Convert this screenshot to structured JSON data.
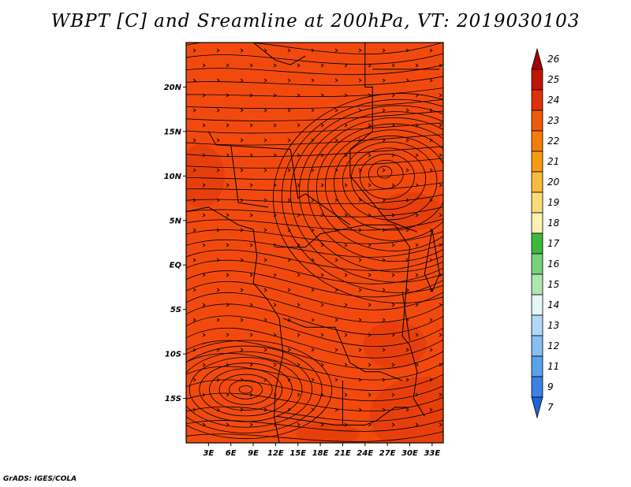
{
  "title": "WBPT [C] and Sreamline at 200hPa, VT: 2019030103",
  "credit": "GrADS: IGES/COLA",
  "map": {
    "lon_labels": [
      "3E",
      "6E",
      "9E",
      "12E",
      "15E",
      "18E",
      "21E",
      "24E",
      "27E",
      "30E",
      "33E"
    ],
    "lon_values": [
      3,
      6,
      9,
      12,
      15,
      18,
      21,
      24,
      27,
      30,
      33
    ],
    "lon_range": [
      0,
      34.5
    ],
    "lat_labels": [
      "20N",
      "15N",
      "10N",
      "5N",
      "EQ",
      "5S",
      "10S",
      "15S"
    ],
    "lat_values": [
      20,
      15,
      10,
      5,
      0,
      -5,
      -10,
      -15
    ],
    "lat_range": [
      -20,
      25
    ],
    "fill_color": "#f24a0e",
    "shade_color": "#e23a0a",
    "streamline_color": "#000000",
    "features": [
      {
        "name": "cyclonic-circulation-north",
        "lon": 26.5,
        "lat": 10.6
      },
      {
        "name": "cyclonic-circulation-south",
        "lon": 8,
        "lat": -14
      }
    ]
  },
  "colorbar": {
    "labels": [
      "26",
      "25",
      "24",
      "23",
      "22",
      "21",
      "20",
      "19",
      "18",
      "17",
      "16",
      "15",
      "14",
      "13",
      "12",
      "11",
      "9",
      "7"
    ],
    "colors": [
      "#a50000",
      "#c01400",
      "#e13008",
      "#f05a0a",
      "#f57c0c",
      "#f79b12",
      "#f8bb3c",
      "#f9dc78",
      "#fbf2b0",
      "#3cba3c",
      "#78d178",
      "#afe5af",
      "#e4f6f6",
      "#b2d8f6",
      "#86bff0",
      "#5aa2ea",
      "#3c82e2",
      "#1e64d8"
    ]
  }
}
